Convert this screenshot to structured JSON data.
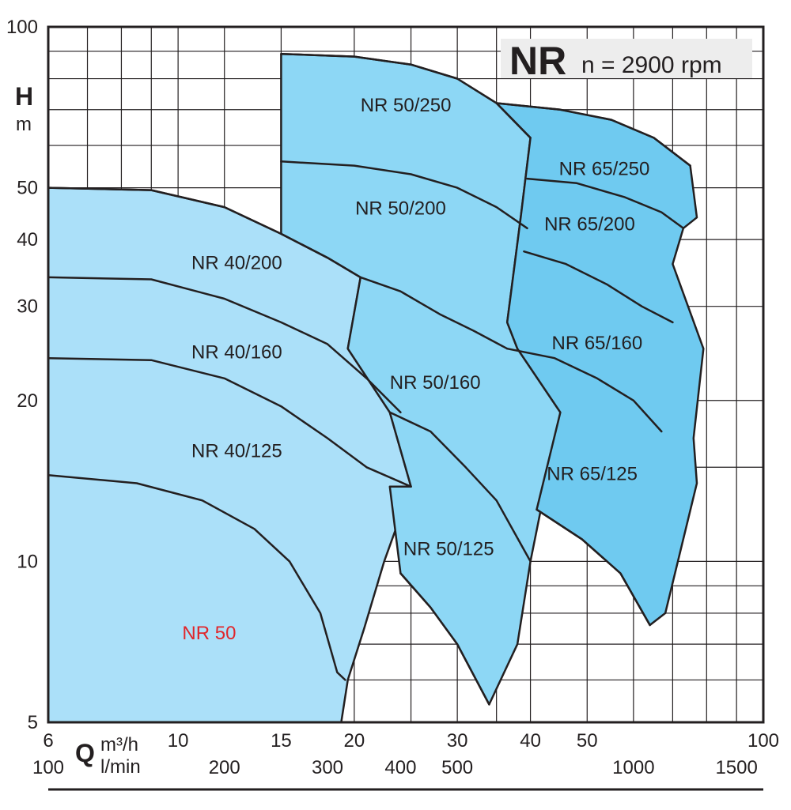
{
  "chart_data": {
    "type": "area",
    "title": "NR",
    "subtitle": "n = 2900 rpm",
    "ylabel": {
      "symbol": "H",
      "unit": "m"
    },
    "xlabel": {
      "symbol": "Q",
      "unit_primary": "m³/h",
      "unit_secondary": "l/min"
    },
    "x_scale": "log",
    "y_scale": "log",
    "xlim": [
      6,
      100
    ],
    "ylim": [
      5,
      100
    ],
    "x_ticks": [
      {
        "value": 6,
        "label": "6"
      },
      {
        "value": 10,
        "label": "10"
      },
      {
        "value": 15,
        "label": "15"
      },
      {
        "value": 20,
        "label": "20"
      },
      {
        "value": 30,
        "label": "30"
      },
      {
        "value": 40,
        "label": "40"
      },
      {
        "value": 50,
        "label": "50"
      },
      {
        "value": 100,
        "label": "100"
      }
    ],
    "x_ticks_secondary": [
      {
        "value": 6,
        "label": "100"
      },
      {
        "value": 12,
        "label": "200"
      },
      {
        "value": 18,
        "label": "300"
      },
      {
        "value": 24,
        "label": "400"
      },
      {
        "value": 30,
        "label": "500"
      },
      {
        "value": 60,
        "label": "1000"
      },
      {
        "value": 90,
        "label": "1500"
      }
    ],
    "y_ticks": [
      {
        "value": 5,
        "label": "5"
      },
      {
        "value": 10,
        "label": "10"
      },
      {
        "value": 20,
        "label": "20"
      },
      {
        "value": 30,
        "label": "30"
      },
      {
        "value": 40,
        "label": "40"
      },
      {
        "value": 50,
        "label": "50"
      },
      {
        "value": 100,
        "label": "100"
      }
    ],
    "x_grid": [
      7,
      8,
      9,
      10,
      12,
      15,
      20,
      25,
      30,
      35,
      40,
      50,
      60,
      70,
      80,
      90
    ],
    "y_grid": [
      6,
      7,
      8,
      9,
      10,
      15,
      20,
      30,
      40,
      50,
      60,
      70,
      80,
      90
    ],
    "grid": true,
    "series_groups": [
      {
        "name": "NR 40",
        "color": "#abe0f9",
        "outline": [
          [
            6,
            50
          ],
          [
            9,
            49.5
          ],
          [
            12,
            46
          ],
          [
            15,
            41
          ],
          [
            18,
            37
          ],
          [
            20.5,
            34
          ],
          [
            19.5,
            25
          ],
          [
            23,
            19
          ],
          [
            25,
            13.8
          ],
          [
            22.5,
            10
          ],
          [
            20.8,
            7.5
          ],
          [
            19.5,
            6
          ],
          [
            19,
            5
          ],
          [
            6,
            5
          ]
        ],
        "curves": [
          [
            [
              6,
              50
            ],
            [
              9,
              49.5
            ],
            [
              12,
              46
            ],
            [
              15,
              41
            ],
            [
              18,
              37
            ],
            [
              20.5,
              34
            ]
          ],
          [
            [
              6,
              34
            ],
            [
              9,
              33.7
            ],
            [
              12,
              31
            ],
            [
              15,
              28
            ],
            [
              18,
              25.5
            ],
            [
              21,
              22
            ],
            [
              24,
              19
            ]
          ],
          [
            [
              6,
              24
            ],
            [
              9,
              23.8
            ],
            [
              12,
              22
            ],
            [
              15,
              19.5
            ],
            [
              18,
              17
            ],
            [
              21,
              15
            ],
            [
              25,
              13.8
            ]
          ],
          [
            [
              6,
              14.5
            ],
            [
              8.5,
              14
            ],
            [
              11,
              13
            ],
            [
              13.5,
              11.5
            ],
            [
              15.5,
              10
            ],
            [
              17.5,
              8
            ],
            [
              18.7,
              6.2
            ],
            [
              19.3,
              6
            ]
          ]
        ]
      },
      {
        "name": "NR 50",
        "color": "#8dd7f5",
        "outline": [
          [
            15,
            89
          ],
          [
            20,
            88
          ],
          [
            25,
            85
          ],
          [
            30,
            80
          ],
          [
            35,
            72
          ],
          [
            40,
            62
          ],
          [
            38.5,
            44
          ],
          [
            36.5,
            28
          ],
          [
            38,
            25
          ],
          [
            45,
            19
          ],
          [
            40,
            10
          ],
          [
            38,
            7
          ],
          [
            34,
            5.4
          ],
          [
            30,
            7
          ],
          [
            27,
            8.2
          ],
          [
            24,
            9.5
          ],
          [
            23,
            13.8
          ],
          [
            25,
            13.8
          ],
          [
            23,
            19
          ],
          [
            19.5,
            25
          ],
          [
            20.5,
            34
          ],
          [
            18,
            37
          ],
          [
            15,
            41
          ]
        ],
        "curves": [
          [
            [
              15,
              89
            ],
            [
              20,
              88
            ],
            [
              25,
              85
            ],
            [
              30,
              80
            ],
            [
              35,
              72
            ],
            [
              40,
              62
            ]
          ],
          [
            [
              15,
              56
            ],
            [
              20,
              55
            ],
            [
              25,
              53
            ],
            [
              30,
              50
            ],
            [
              35,
              46
            ],
            [
              39.5,
              42
            ]
          ],
          [
            [
              20.5,
              34
            ],
            [
              24,
              32
            ],
            [
              28,
              29
            ],
            [
              32,
              27
            ],
            [
              36.5,
              25
            ]
          ],
          [
            [
              23,
              19
            ],
            [
              27,
              17.5
            ],
            [
              31,
              15
            ],
            [
              35,
              13
            ],
            [
              40,
              10
            ]
          ],
          [
            [
              24,
              9.5
            ],
            [
              27,
              8.2
            ],
            [
              30,
              7
            ],
            [
              34,
              5.4
            ]
          ]
        ]
      },
      {
        "name": "NR 65",
        "color": "#6fcaf0",
        "outline": [
          [
            35,
            72
          ],
          [
            45,
            70
          ],
          [
            55,
            67
          ],
          [
            65,
            62
          ],
          [
            75,
            55
          ],
          [
            77,
            44
          ],
          [
            73,
            42
          ],
          [
            70,
            36
          ],
          [
            79,
            25
          ],
          [
            76,
            17
          ],
          [
            77,
            14
          ],
          [
            68,
            8
          ],
          [
            64,
            7.6
          ],
          [
            57,
            9.5
          ],
          [
            49,
            11
          ],
          [
            41,
            12.5
          ],
          [
            45,
            19
          ],
          [
            38,
            25
          ],
          [
            36.5,
            28
          ],
          [
            38.5,
            44
          ],
          [
            40,
            62
          ]
        ],
        "curves": [
          [
            [
              35,
              72
            ],
            [
              45,
              70
            ],
            [
              55,
              67
            ],
            [
              65,
              62
            ],
            [
              75,
              55
            ]
          ],
          [
            [
              39.5,
              52
            ],
            [
              48,
              51
            ],
            [
              58,
              48
            ],
            [
              67,
              45
            ],
            [
              73,
              42
            ]
          ],
          [
            [
              39,
              38
            ],
            [
              46,
              36
            ],
            [
              54,
              33
            ],
            [
              62,
              30
            ],
            [
              70,
              28
            ]
          ],
          [
            [
              36.5,
              25
            ],
            [
              44,
              24
            ],
            [
              52,
              22
            ],
            [
              60,
              20
            ],
            [
              67,
              17.5
            ]
          ],
          [
            [
              41,
              12.5
            ],
            [
              49,
              11
            ],
            [
              57,
              9.5
            ],
            [
              64,
              7.6
            ]
          ]
        ]
      }
    ],
    "region_labels": [
      {
        "text": "NR 50/250",
        "x": 24.5,
        "y": 71,
        "color": "#231f20"
      },
      {
        "text": "NR 65/250",
        "x": 53.5,
        "y": 54,
        "color": "#231f20"
      },
      {
        "text": "NR 50/200",
        "x": 24.0,
        "y": 45.5,
        "color": "#231f20"
      },
      {
        "text": "NR 65/200",
        "x": 50.5,
        "y": 42.5,
        "color": "#231f20"
      },
      {
        "text": "NR 40/200",
        "x": 12.6,
        "y": 36,
        "color": "#231f20"
      },
      {
        "text": "NR 40/160",
        "x": 12.6,
        "y": 24.5,
        "color": "#231f20"
      },
      {
        "text": "NR 65/160",
        "x": 52.0,
        "y": 25.5,
        "color": "#231f20"
      },
      {
        "text": "NR 50/160",
        "x": 27.5,
        "y": 21.5,
        "color": "#231f20"
      },
      {
        "text": "NR 40/125",
        "x": 12.6,
        "y": 16,
        "color": "#231f20"
      },
      {
        "text": "NR 65/125",
        "x": 51.0,
        "y": 14.5,
        "color": "#231f20"
      },
      {
        "text": "NR 50/125",
        "x": 29.0,
        "y": 10.5,
        "color": "#231f20"
      },
      {
        "text": "NR 50",
        "x": 11.3,
        "y": 7.3,
        "color": "#e0262b"
      }
    ]
  }
}
